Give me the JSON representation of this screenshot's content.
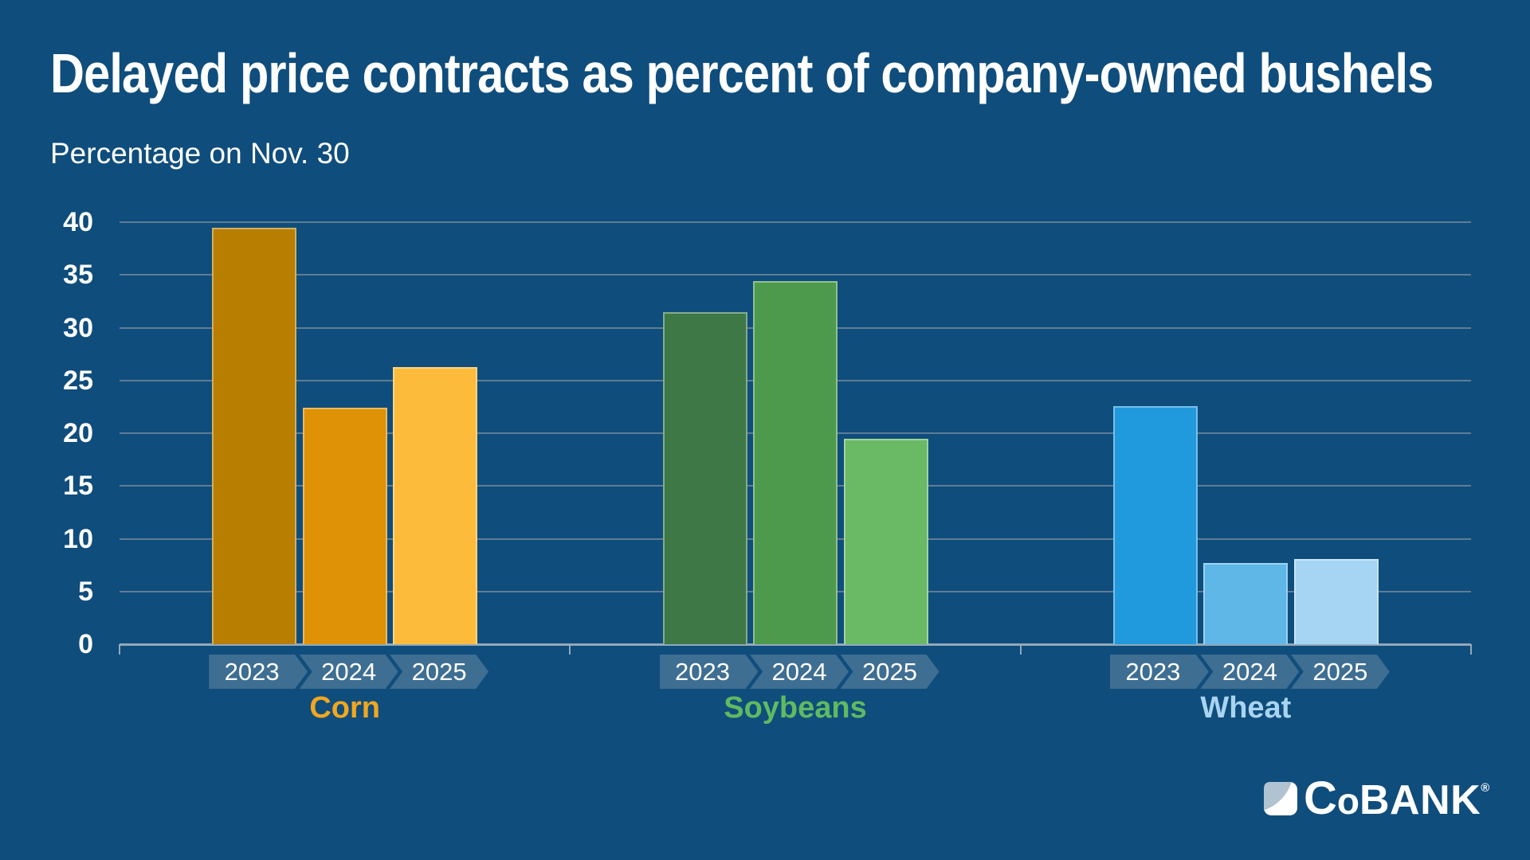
{
  "title": "Delayed price contracts as percent of company-owned bushels",
  "subtitle": "Percentage on Nov. 30",
  "chart_data": {
    "type": "bar",
    "title": "Delayed price contracts as percent of company-owned bushels",
    "subtitle": "Percentage on Nov. 30",
    "ylim": [
      0,
      40
    ],
    "ytick_step": 5,
    "grid": true,
    "legend_position": "none",
    "categories": [
      "2023",
      "2024",
      "2025"
    ],
    "groups": [
      {
        "name": "Corn",
        "label_color": "#F2A71F",
        "values": [
          39.5,
          22.4,
          26.3
        ],
        "bar_colors": [
          "#B87E02",
          "#DF9206",
          "#FDBB3B"
        ]
      },
      {
        "name": "Soybeans",
        "label_color": "#5FBA61",
        "values": [
          31.5,
          34.4,
          19.5
        ],
        "bar_colors": [
          "#3D7846",
          "#4E9A4D",
          "#69B965"
        ]
      },
      {
        "name": "Wheat",
        "label_color": "#A9D4F1",
        "values": [
          22.6,
          7.7,
          8.1
        ],
        "bar_colors": [
          "#219ADD",
          "#5FB7E8",
          "#A5D5F3"
        ]
      }
    ]
  },
  "colors": {
    "background": "#0F4D7C",
    "gridline": "#5F7C95",
    "axis": "#93A8B9",
    "banner": "#3E6E92",
    "text": "#FFFFFF"
  },
  "logo": {
    "c": "C",
    "o": "o",
    "bank": "BANK",
    "reg": "®"
  }
}
